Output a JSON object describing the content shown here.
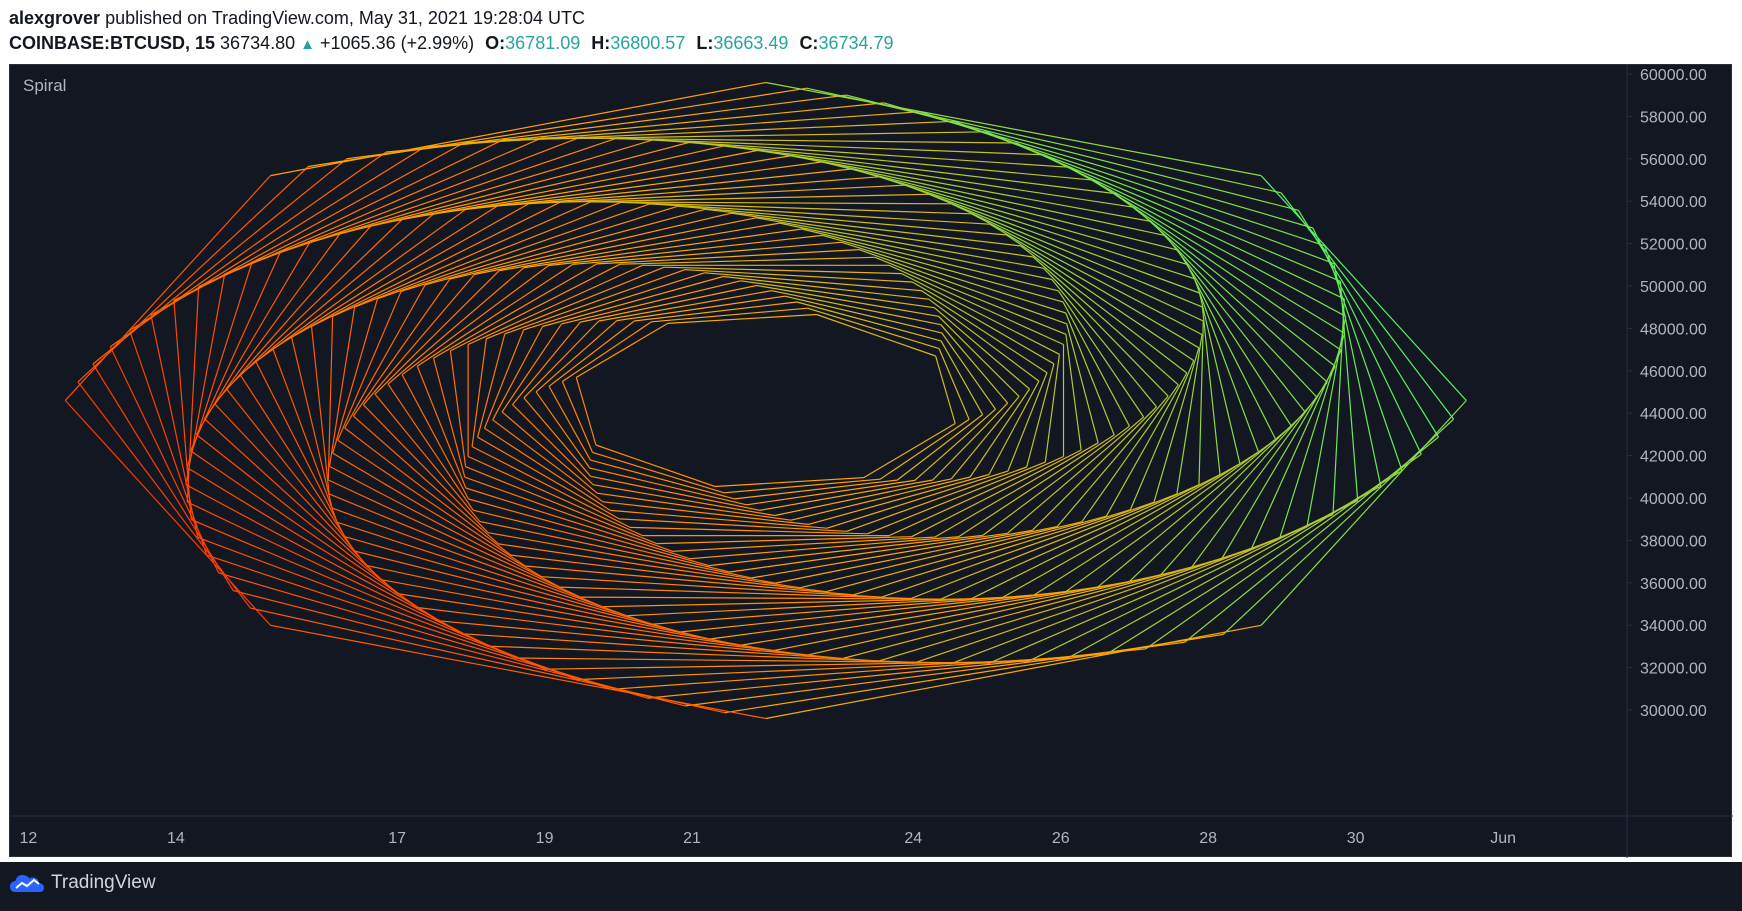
{
  "header": {
    "author": "alexgrover",
    "published_text": " published on TradingView.com, May 31, 2021 19:28:04 UTC",
    "symbol": "COINBASE:BTCUSD, 15",
    "last_price": "36734.80",
    "change": "+1065.36 (+2.99%)",
    "open_label": "O:",
    "open": "36781.09",
    "high_label": "H:",
    "high": "36800.57",
    "low_label": "L:",
    "low": "36663.49",
    "close_label": "C:",
    "close": "36734.79"
  },
  "indicator": {
    "name": "Spiral"
  },
  "footer": {
    "brand": "TradingView"
  },
  "colors": {
    "background": "#131722",
    "axis_text": "#b2b5be",
    "up": "#26a69a",
    "spiral_inner": "#ff2a00",
    "spiral_mid": "#ffa500",
    "spiral_outer": "#3cff70"
  },
  "chart_data": {
    "type": "line",
    "title": "Spiral",
    "y_axis": {
      "ticks": [
        "60000.00",
        "58000.00",
        "56000.00",
        "54000.00",
        "52000.00",
        "50000.00",
        "48000.00",
        "46000.00",
        "44000.00",
        "42000.00",
        "40000.00",
        "38000.00",
        "36000.00",
        "34000.00",
        "32000.00",
        "30000.00"
      ],
      "ylim": [
        29000,
        60500
      ]
    },
    "x_axis": {
      "ticks": [
        {
          "label": "12",
          "day": 12
        },
        {
          "label": "14",
          "day": 14
        },
        {
          "label": "17",
          "day": 17
        },
        {
          "label": "19",
          "day": 19
        },
        {
          "label": "21",
          "day": 21
        },
        {
          "label": "24",
          "day": 24
        },
        {
          "label": "26",
          "day": 26
        },
        {
          "label": "28",
          "day": 28
        },
        {
          "label": "30",
          "day": 30
        },
        {
          "label": "Jun",
          "day": 32
        }
      ],
      "xlim": [
        11.75,
        33.68
      ]
    },
    "spiral": {
      "center": {
        "day": 22.0,
        "price": 44600
      },
      "arms": 8,
      "rings": 45,
      "outer_radius_days": 9.5,
      "outer_radius_price": 15000,
      "inner_radius_fraction": 0.28,
      "twist_degrees": 150
    }
  }
}
